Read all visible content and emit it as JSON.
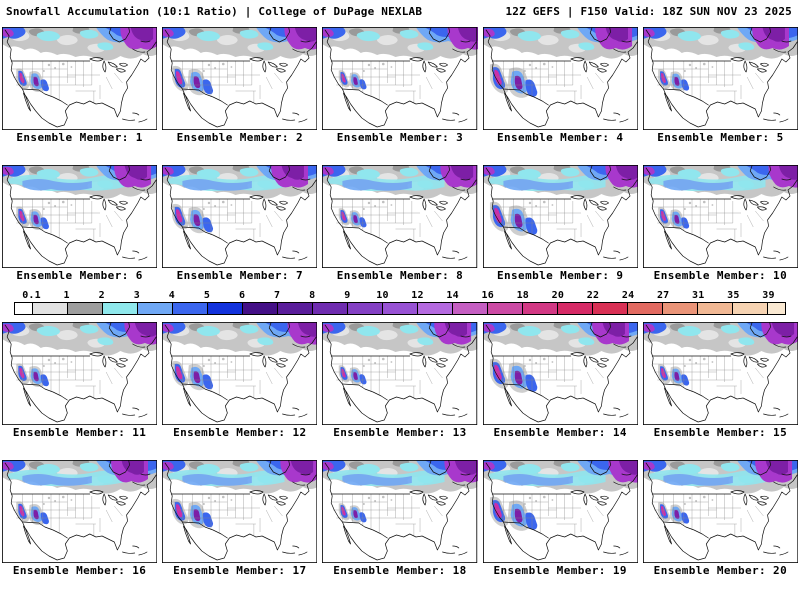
{
  "header": {
    "title_left": "Snowfall Accumulation (10:1 Ratio) | College of DuPage NEXLAB",
    "title_right": "12Z GEFS | F150 Valid: 18Z SUN NOV 23 2025"
  },
  "members": [
    "Ensemble Member: 1",
    "Ensemble Member: 2",
    "Ensemble Member: 3",
    "Ensemble Member: 4",
    "Ensemble Member: 5",
    "Ensemble Member: 6",
    "Ensemble Member: 7",
    "Ensemble Member: 8",
    "Ensemble Member: 9",
    "Ensemble Member: 10",
    "Ensemble Member: 11",
    "Ensemble Member: 12",
    "Ensemble Member: 13",
    "Ensemble Member: 14",
    "Ensemble Member: 15",
    "Ensemble Member: 16",
    "Ensemble Member: 17",
    "Ensemble Member: 18",
    "Ensemble Member: 19",
    "Ensemble Member: 20"
  ],
  "colorbar": {
    "labels": [
      "0.1",
      "1",
      "2",
      "3",
      "4",
      "5",
      "6",
      "7",
      "8",
      "9",
      "10",
      "12",
      "14",
      "16",
      "18",
      "20",
      "22",
      "24",
      "27",
      "31",
      "35",
      "39"
    ],
    "colors": [
      "#ffffff",
      "#e2e2e2",
      "#9e9e9e",
      "#8fe8ec",
      "#6fa8f5",
      "#3b66ee",
      "#1232dc",
      "#441087",
      "#5a1d9b",
      "#6f2cb0",
      "#8440c4",
      "#9852d4",
      "#b56ae0",
      "#c55ec2",
      "#cc4aa4",
      "#d23884",
      "#d62a66",
      "#d93055",
      "#e26a61",
      "#ea9478",
      "#f1b894",
      "#f6d3b2",
      "#fae9d2"
    ]
  },
  "colors": {
    "background": "#ffffff",
    "text": "#000000",
    "snow_light_gray": "#c6c6c6",
    "snow_cyan": "#90e6ee",
    "snow_blue": "#3b66ee",
    "snow_purple": "#a838cc",
    "snow_magenta": "#cc2fa8"
  }
}
